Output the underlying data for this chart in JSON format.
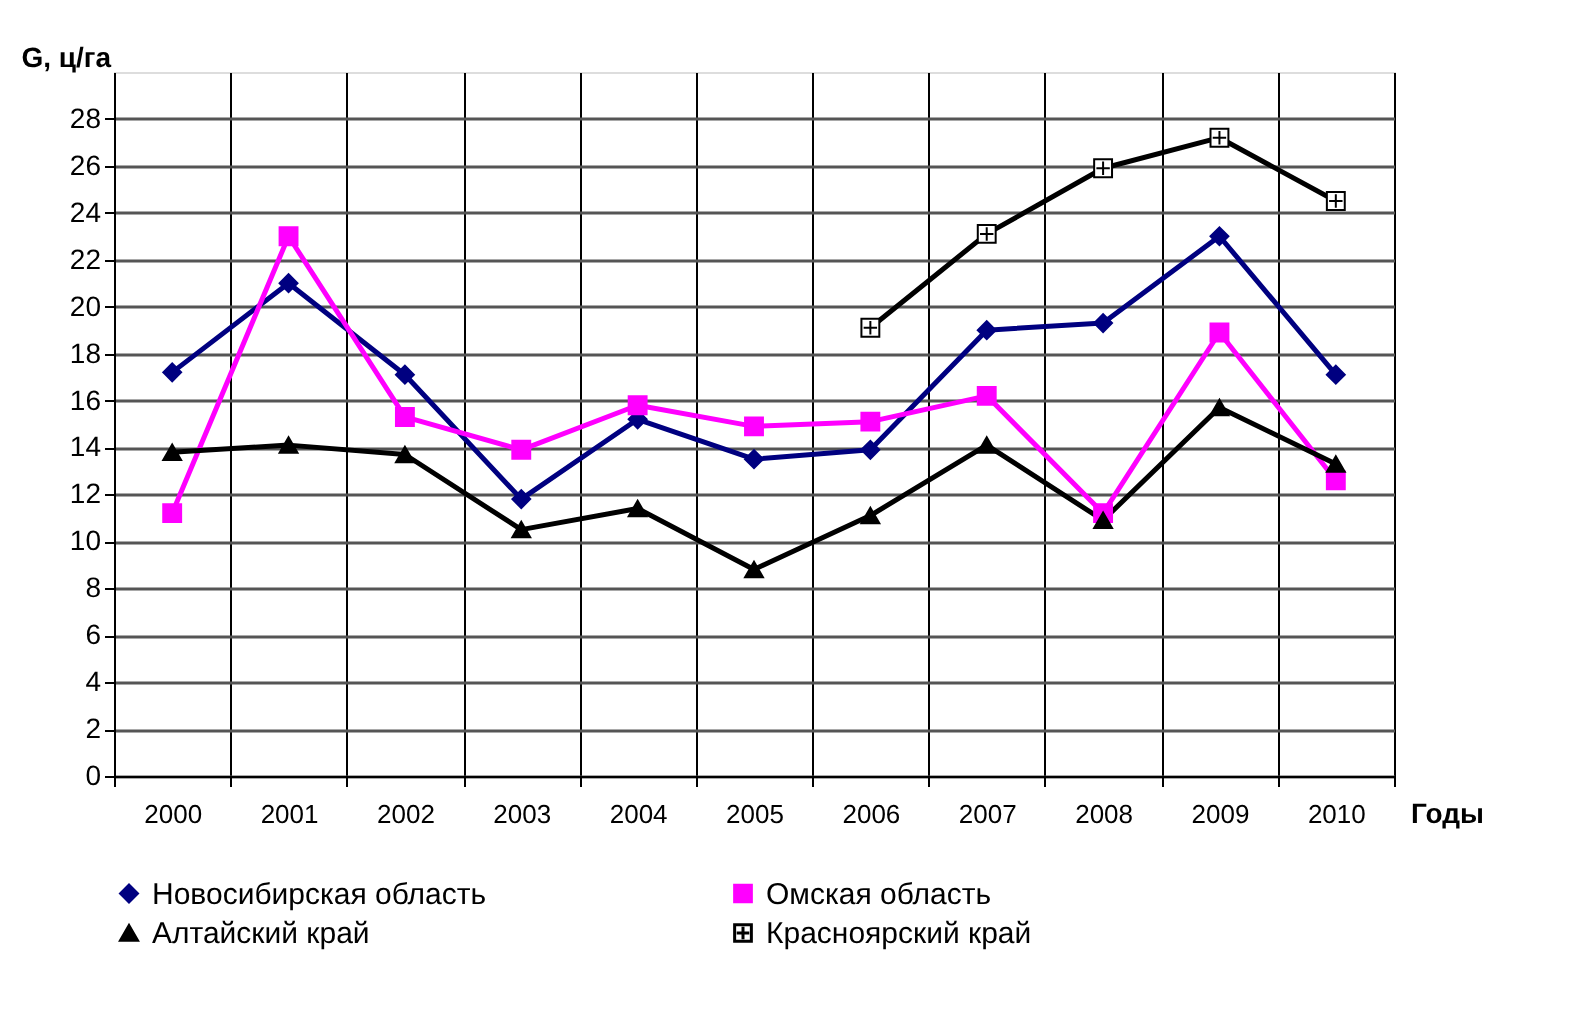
{
  "chart_data": {
    "type": "line",
    "xlabel": "Годы",
    "ylabel": "G, ц/га",
    "categories": [
      "2000",
      "2001",
      "2002",
      "2003",
      "2004",
      "2005",
      "2006",
      "2007",
      "2008",
      "2009",
      "2010"
    ],
    "ylim": [
      0,
      30
    ],
    "yticks": [
      0,
      2,
      4,
      6,
      8,
      10,
      12,
      14,
      16,
      18,
      20,
      22,
      24,
      26,
      28
    ],
    "grid": true,
    "legend": "bottom",
    "series": [
      {
        "name": "Новосибирская область",
        "color": "#000080",
        "marker": "diamond",
        "values": [
          17.2,
          21.0,
          17.1,
          11.8,
          15.2,
          13.5,
          13.9,
          19.0,
          19.3,
          23.0,
          17.1
        ]
      },
      {
        "name": "Омская область",
        "color": "#ff00ff",
        "marker": "square",
        "values": [
          11.2,
          23.0,
          15.3,
          13.9,
          15.8,
          14.9,
          15.1,
          16.2,
          11.2,
          18.9,
          12.6
        ]
      },
      {
        "name": "Алтайский край",
        "color": "#000000",
        "marker": "triangle",
        "values": [
          13.8,
          14.1,
          13.7,
          10.5,
          11.4,
          8.8,
          11.1,
          14.1,
          10.9,
          15.7,
          13.3
        ]
      },
      {
        "name": "Красноярский край",
        "color": "#000000",
        "marker": "cross",
        "values": [
          null,
          null,
          null,
          null,
          null,
          null,
          19.1,
          23.1,
          25.9,
          27.2,
          24.5
        ]
      }
    ]
  }
}
